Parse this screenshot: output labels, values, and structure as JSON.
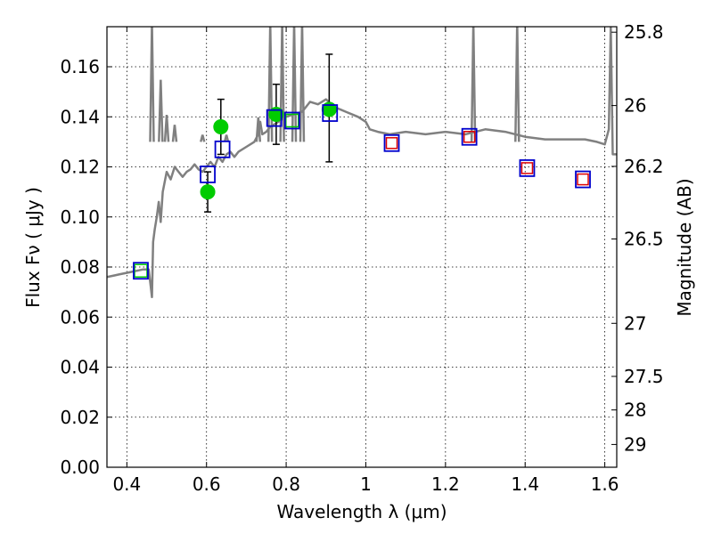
{
  "chart_data": {
    "type": "scatter",
    "xlabel": "Wavelength  λ (μm)",
    "ylabel": "Flux  Fν  ( μJy )",
    "y2label": "Magnitude (AB)",
    "xlim": [
      0.35,
      1.63
    ],
    "ylim": [
      0.0,
      0.176
    ],
    "grid": true,
    "x_ticks": [
      0.4,
      0.6,
      0.8,
      1.0,
      1.2,
      1.4,
      1.6
    ],
    "x_tick_labels": [
      "0.4",
      "0.6",
      "0.8",
      "1",
      "1.2",
      "1.4",
      "1.6"
    ],
    "y_ticks": [
      0.0,
      0.02,
      0.04,
      0.06,
      0.08,
      0.1,
      0.12,
      0.14,
      0.16
    ],
    "y_tick_labels": [
      "0.00",
      "0.02",
      "0.04",
      "0.06",
      "0.08",
      "0.10",
      "0.12",
      "0.14",
      "0.16"
    ],
    "mag_ticks": [
      {
        "label": "25.8",
        "flux": 0.1738
      },
      {
        "label": "26",
        "flux": 0.1445
      },
      {
        "label": "26.2",
        "flux": 0.1202
      },
      {
        "label": "26.5",
        "flux": 0.0912
      },
      {
        "label": "27",
        "flux": 0.0575
      },
      {
        "label": "27.5",
        "flux": 0.0363
      },
      {
        "label": "28",
        "flux": 0.0229
      },
      {
        "label": "29",
        "flux": 0.0091
      }
    ],
    "colors": {
      "model": "#808080",
      "observed": "#00cc00",
      "model_box": "#0000cc",
      "model_fill_green": "#00cc00",
      "model_fill_red": "#dd0000",
      "errorbar": "#000000"
    },
    "series": [
      {
        "name": "model_spectrum",
        "style": "line",
        "x": [
          0.35,
          0.38,
          0.41,
          0.44,
          0.455,
          0.46,
          0.463,
          0.466,
          0.47,
          0.475,
          0.48,
          0.485,
          0.49,
          0.5,
          0.51,
          0.52,
          0.53,
          0.54,
          0.55,
          0.56,
          0.57,
          0.58,
          0.59,
          0.6,
          0.61,
          0.62,
          0.63,
          0.64,
          0.65,
          0.66,
          0.67,
          0.68,
          0.7,
          0.72,
          0.73,
          0.735,
          0.74,
          0.75,
          0.76,
          0.78,
          0.8,
          0.82,
          0.84,
          0.86,
          0.88,
          0.9,
          0.92,
          0.95,
          0.98,
          1.0,
          1.01,
          1.03,
          1.06,
          1.1,
          1.15,
          1.2,
          1.25,
          1.3,
          1.35,
          1.4,
          1.45,
          1.5,
          1.55,
          1.58,
          1.6,
          1.61,
          1.615,
          1.62,
          1.63
        ],
        "y": [
          0.076,
          0.077,
          0.078,
          0.079,
          0.079,
          0.072,
          0.068,
          0.09,
          0.095,
          0.1,
          0.106,
          0.098,
          0.11,
          0.118,
          0.115,
          0.12,
          0.118,
          0.116,
          0.118,
          0.119,
          0.121,
          0.119,
          0.118,
          0.12,
          0.122,
          0.12,
          0.124,
          0.122,
          0.125,
          0.126,
          0.124,
          0.126,
          0.128,
          0.13,
          0.133,
          0.138,
          0.133,
          0.134,
          0.136,
          0.138,
          0.14,
          0.141,
          0.142,
          0.146,
          0.145,
          0.147,
          0.144,
          0.142,
          0.14,
          0.138,
          0.135,
          0.134,
          0.133,
          0.134,
          0.133,
          0.134,
          0.133,
          0.135,
          0.134,
          0.132,
          0.131,
          0.131,
          0.131,
          0.13,
          0.129,
          0.135,
          0.176,
          0.125,
          0.125
        ]
      },
      {
        "name": "emission_spikes",
        "style": "spikes",
        "x": [
          0.463,
          0.485,
          0.5,
          0.52,
          0.59,
          0.65,
          0.73,
          0.76,
          0.79,
          0.82,
          0.84,
          1.27,
          1.38
        ],
        "y": [
          0.176,
          0.153,
          0.139,
          0.135,
          0.131,
          0.131,
          0.138,
          0.176,
          0.176,
          0.176,
          0.176,
          0.176,
          0.176
        ]
      },
      {
        "name": "observed_photometry",
        "style": "points_with_errors",
        "x": [
          0.603,
          0.636,
          0.775,
          0.908
        ],
        "y": [
          0.11,
          0.136,
          0.141,
          0.143
        ],
        "yerr_low": [
          0.102,
          0.125,
          0.129,
          0.122
        ],
        "yerr_high": [
          0.118,
          0.147,
          0.153,
          0.165
        ]
      },
      {
        "name": "model_photometry",
        "style": "squares",
        "x": [
          0.435,
          0.603,
          0.64,
          0.77,
          0.815,
          0.91,
          1.065,
          1.26,
          1.405,
          1.545
        ],
        "y": [
          0.0785,
          0.117,
          0.127,
          0.1395,
          0.1385,
          0.1415,
          0.1295,
          0.132,
          0.1195,
          0.115
        ],
        "inner": [
          "green",
          "none",
          "none",
          "none",
          "green",
          "none",
          "red",
          "red",
          "red",
          "red"
        ]
      }
    ]
  }
}
